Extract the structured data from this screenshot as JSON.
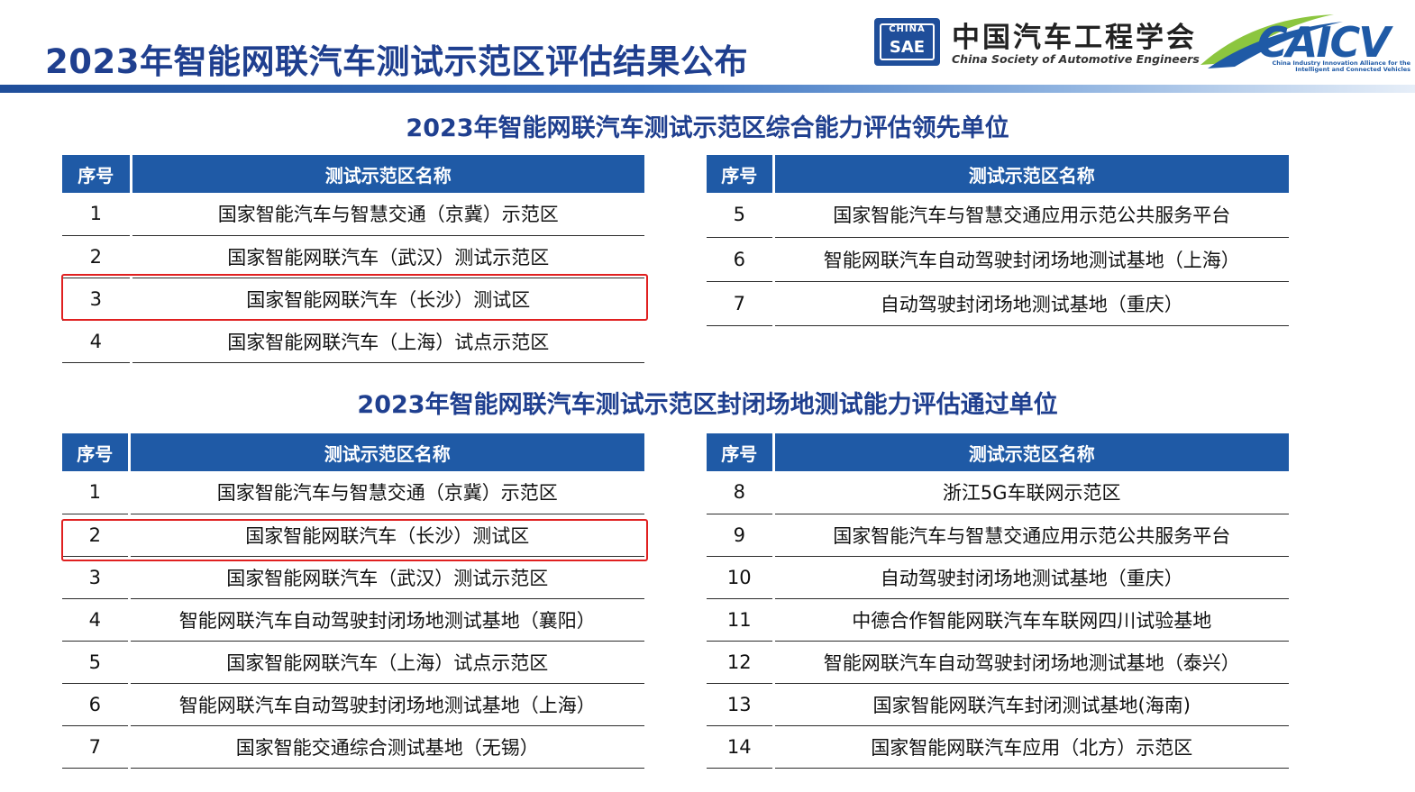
{
  "header": {
    "title": "2023年智能网联汽车测试示范区评估结果公布",
    "sae_logo_top": "CHINA",
    "sae_logo_bottom": "SAE",
    "org_name_cn": "中国汽车工程学会",
    "org_name_en": "China Society of Automotive Engineers",
    "caicv_logo": "CAICV",
    "caicv_subtitle": "China Industry Innovation Alliance for the Intelligent and Connected Vehicles"
  },
  "colors": {
    "accent": "#1f5aa6",
    "title": "#1f3f8f",
    "highlight": "#e02020"
  },
  "section1": {
    "title": "2023年智能网联汽车测试示范区综合能力评估领先单位",
    "left_table": {
      "headers": [
        "序号",
        "测试示范区名称"
      ],
      "rows": [
        [
          "1",
          "国家智能汽车与智慧交通（京冀）示范区"
        ],
        [
          "2",
          "国家智能网联汽车（武汉）测试示范区"
        ],
        [
          "3",
          "国家智能网联汽车（长沙）测试区"
        ],
        [
          "4",
          "国家智能网联汽车（上海）试点示范区"
        ]
      ]
    },
    "right_table": {
      "headers": [
        "序号",
        "测试示范区名称"
      ],
      "rows": [
        [
          "5",
          "国家智能汽车与智慧交通应用示范公共服务平台"
        ],
        [
          "6",
          "智能网联汽车自动驾驶封闭场地测试基地（上海）"
        ],
        [
          "7",
          "自动驾驶封闭场地测试基地（重庆）"
        ]
      ]
    }
  },
  "section2": {
    "title": "2023年智能网联汽车测试示范区封闭场地测试能力评估通过单位",
    "left_table": {
      "headers": [
        "序号",
        "测试示范区名称"
      ],
      "rows": [
        [
          "1",
          "国家智能汽车与智慧交通（京冀）示范区"
        ],
        [
          "2",
          "国家智能网联汽车（长沙）测试区"
        ],
        [
          "3",
          "国家智能网联汽车（武汉）测试示范区"
        ],
        [
          "4",
          "智能网联汽车自动驾驶封闭场地测试基地（襄阳）"
        ],
        [
          "5",
          "国家智能网联汽车（上海）试点示范区"
        ],
        [
          "6",
          "智能网联汽车自动驾驶封闭场地测试基地（上海）"
        ],
        [
          "7",
          "国家智能交通综合测试基地（无锡）"
        ]
      ]
    },
    "right_table": {
      "headers": [
        "序号",
        "测试示范区名称"
      ],
      "rows": [
        [
          "8",
          "浙江5G车联网示范区"
        ],
        [
          "9",
          "国家智能汽车与智慧交通应用示范公共服务平台"
        ],
        [
          "10",
          "自动驾驶封闭场地测试基地（重庆）"
        ],
        [
          "11",
          "中德合作智能网联汽车车联网四川试验基地"
        ],
        [
          "12",
          "智能网联汽车自动驾驶封闭场地测试基地（泰兴）"
        ],
        [
          "13",
          "国家智能网联汽车封闭测试基地(海南)"
        ],
        [
          "14",
          "国家智能网联汽车应用（北方）示范区"
        ]
      ]
    }
  }
}
